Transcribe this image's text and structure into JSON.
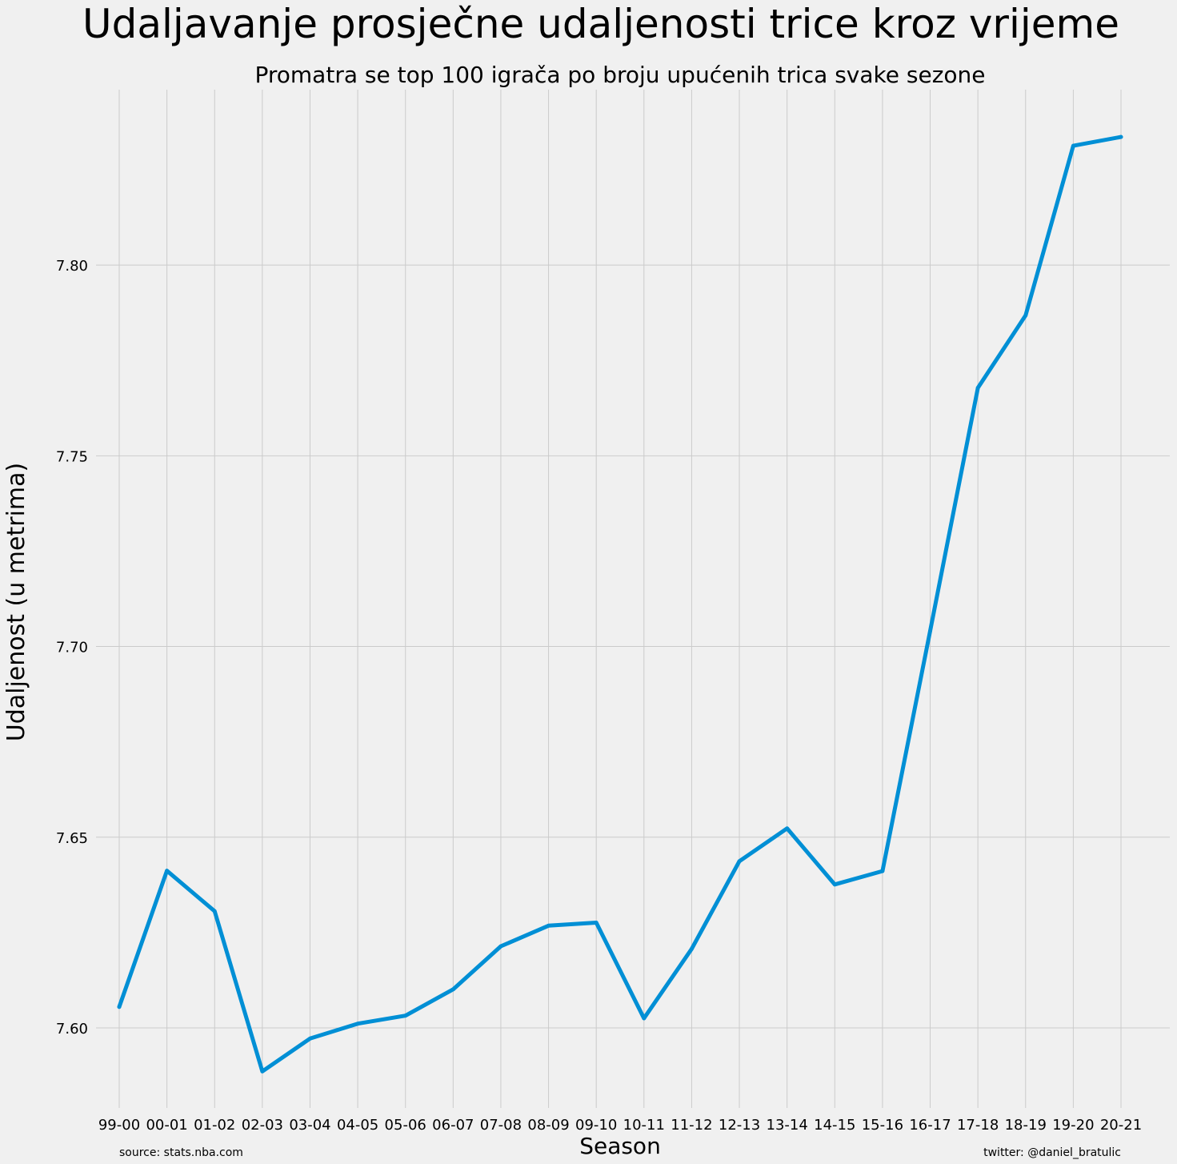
{
  "chart_data": {
    "type": "line",
    "title": "Udaljavanje prosječne udaljenosti trice kroz vrijeme",
    "subtitle": "Promatra se top 100 igrača po broju upućenih trica svake sezone",
    "xlabel": "Season",
    "ylabel": "Udaljenost (u metrima)",
    "categories": [
      "99-00",
      "00-01",
      "01-02",
      "02-03",
      "03-04",
      "04-05",
      "05-06",
      "06-07",
      "07-08",
      "08-09",
      "09-10",
      "10-11",
      "11-12",
      "12-13",
      "13-14",
      "14-15",
      "15-16",
      "16-17",
      "17-18",
      "18-19",
      "19-20",
      "20-21"
    ],
    "values": [
      7.6055,
      7.6412,
      7.6306,
      7.5886,
      7.5972,
      7.6011,
      7.6032,
      7.6101,
      7.6214,
      7.6268,
      7.6276,
      7.6025,
      7.6207,
      7.6437,
      7.6523,
      7.6376,
      7.6411,
      7.7041,
      7.7678,
      7.7868,
      7.8313,
      7.8336
    ],
    "yticks": [
      "7.60",
      "7.65",
      "7.70",
      "7.75",
      "7.80"
    ],
    "ylim": [
      7.579,
      7.846
    ],
    "grid": true,
    "line_color": "#008fd5",
    "source_note": "source: stats.nba.com",
    "credit_note": "twitter: @daniel_bratulic"
  }
}
